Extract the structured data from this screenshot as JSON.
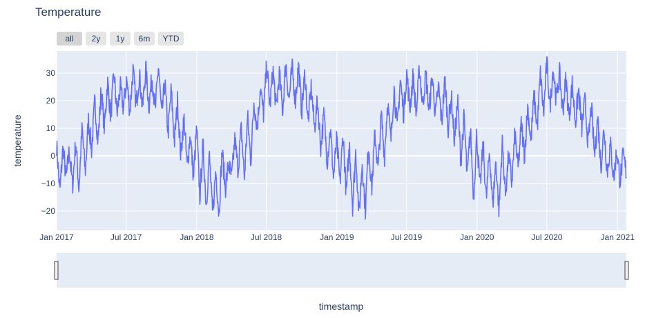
{
  "title": "Temperature",
  "range_selector": {
    "buttons": [
      {
        "label": "all",
        "active": true
      },
      {
        "label": "2y",
        "active": false
      },
      {
        "label": "1y",
        "active": false
      },
      {
        "label": "6m",
        "active": false
      },
      {
        "label": "YTD",
        "active": false
      }
    ]
  },
  "colors": {
    "plot_bg": "#e5ecf6",
    "line": "#636efa",
    "grid": "#ffffff",
    "text": "#2a3f5f",
    "button": "#e6e6e6",
    "button_active": "#d4d4d4"
  },
  "chart_data": {
    "type": "line",
    "title": "Temperature",
    "xlabel": "timestamp",
    "ylabel": "temperature",
    "xlim": [
      "2017-01-01",
      "2021-01-24"
    ],
    "ylim": [
      -27,
      38
    ],
    "x_ticks": [
      {
        "date": "2017-01-01",
        "label": "Jan 2017"
      },
      {
        "date": "2017-07-01",
        "label": "Jul 2017"
      },
      {
        "date": "2018-01-01",
        "label": "Jan 2018"
      },
      {
        "date": "2018-07-01",
        "label": "Jul 2018"
      },
      {
        "date": "2019-01-01",
        "label": "Jan 2019"
      },
      {
        "date": "2019-07-01",
        "label": "Jul 2019"
      },
      {
        "date": "2020-01-01",
        "label": "Jan 2020"
      },
      {
        "date": "2020-07-01",
        "label": "Jul 2020"
      },
      {
        "date": "2021-01-01",
        "label": "Jan 2021"
      }
    ],
    "y_ticks": [
      -20,
      -10,
      0,
      10,
      20,
      30
    ],
    "grid": true,
    "rangeslider": true,
    "series": [
      {
        "x_start": "2017-01-01",
        "x_end": "2021-01-24",
        "frequency": "daily",
        "values_weekly": [
          4,
          -13,
          3,
          -8,
          2,
          -11,
          5,
          -12,
          10,
          -6,
          13,
          2,
          20,
          5,
          24,
          10,
          27,
          14,
          30,
          15,
          25,
          17,
          28,
          16,
          31,
          18,
          30,
          17,
          32,
          18,
          29,
          16,
          33,
          14,
          27,
          8,
          24,
          5,
          20,
          0,
          14,
          -4,
          8,
          -8,
          10,
          -15,
          4,
          -18,
          0,
          -22,
          -5,
          -21,
          2,
          -12,
          -3,
          -8,
          6,
          -5,
          10,
          -8,
          14,
          -2,
          20,
          10,
          25,
          15,
          33,
          18,
          31,
          17,
          30,
          16,
          34,
          20,
          32,
          20,
          33,
          16,
          30,
          12,
          25,
          10,
          20,
          3,
          15,
          -2,
          10,
          -8,
          6,
          -10,
          8,
          -14,
          4,
          -18,
          2,
          -22,
          -2,
          -20,
          5,
          -12,
          8,
          -5,
          15,
          0,
          20,
          5,
          25,
          10,
          28,
          15,
          30,
          17,
          29,
          15,
          32,
          18,
          30,
          16,
          29,
          15,
          25,
          12,
          28,
          10,
          22,
          5,
          20,
          -2,
          14,
          -8,
          10,
          -15,
          8,
          -12,
          4,
          -16,
          2,
          -18,
          -2,
          -20,
          5,
          -14,
          0,
          -10,
          8,
          -5,
          12,
          0,
          18,
          5,
          22,
          10,
          30,
          15,
          34,
          18,
          32,
          20,
          30,
          16,
          28,
          14,
          26,
          12,
          24,
          10,
          20,
          4,
          18,
          0,
          14,
          -4,
          10,
          -6,
          4,
          -8,
          2,
          -9,
          0,
          -6
        ]
      }
    ]
  }
}
